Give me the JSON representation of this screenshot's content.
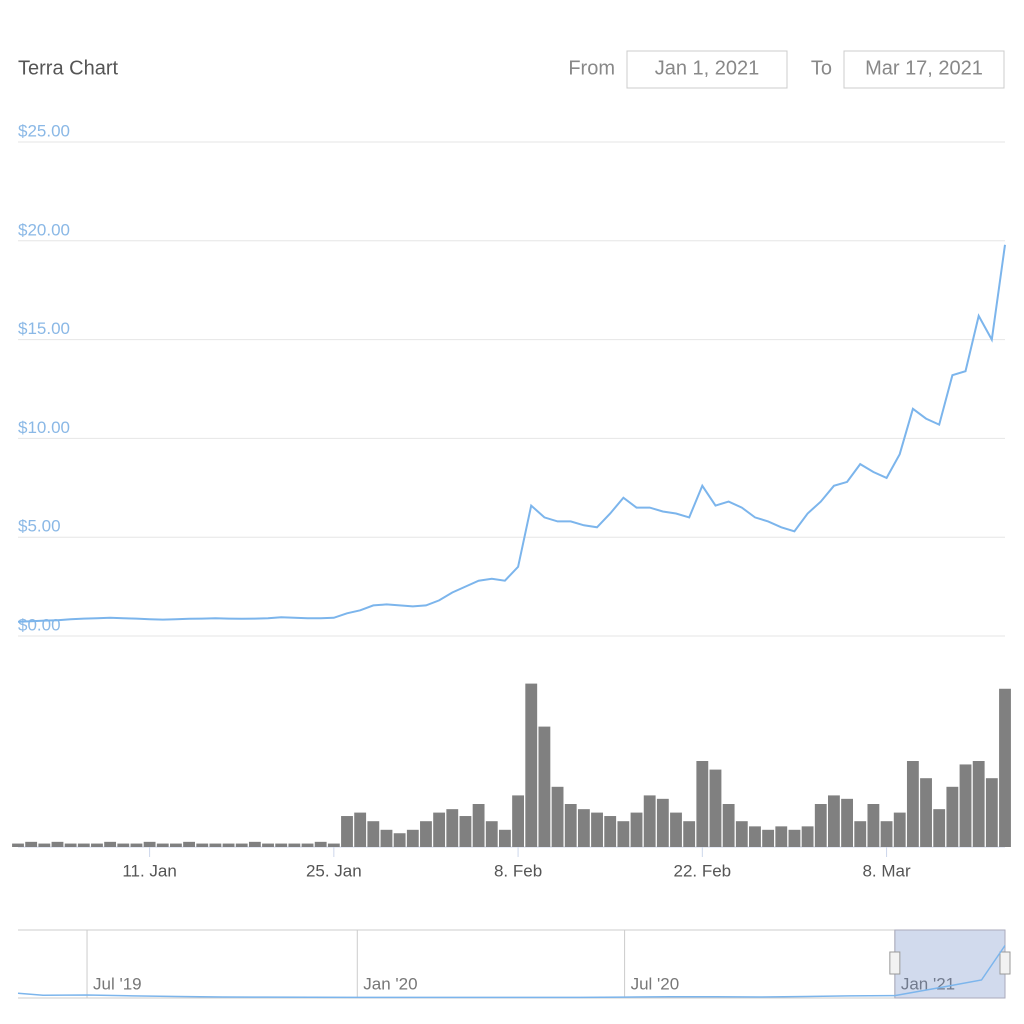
{
  "chart_data": [
    {
      "type": "stock",
      "title": "Terra Chart",
      "from_label": "From",
      "from": "Jan 1, 2021",
      "to_label": "To",
      "to": "Mar 17, 2021",
      "x": [
        "2021-01-01",
        "2021-01-02",
        "2021-01-03",
        "2021-01-04",
        "2021-01-05",
        "2021-01-06",
        "2021-01-07",
        "2021-01-08",
        "2021-01-09",
        "2021-01-10",
        "2021-01-11",
        "2021-01-12",
        "2021-01-13",
        "2021-01-14",
        "2021-01-15",
        "2021-01-16",
        "2021-01-17",
        "2021-01-18",
        "2021-01-19",
        "2021-01-20",
        "2021-01-21",
        "2021-01-22",
        "2021-01-23",
        "2021-01-24",
        "2021-01-25",
        "2021-01-26",
        "2021-01-27",
        "2021-01-28",
        "2021-01-29",
        "2021-01-30",
        "2021-01-31",
        "2021-02-01",
        "2021-02-02",
        "2021-02-03",
        "2021-02-04",
        "2021-02-05",
        "2021-02-06",
        "2021-02-07",
        "2021-02-08",
        "2021-02-09",
        "2021-02-10",
        "2021-02-11",
        "2021-02-12",
        "2021-02-13",
        "2021-02-14",
        "2021-02-15",
        "2021-02-16",
        "2021-02-17",
        "2021-02-18",
        "2021-02-19",
        "2021-02-20",
        "2021-02-21",
        "2021-02-22",
        "2021-02-23",
        "2021-02-24",
        "2021-02-25",
        "2021-02-26",
        "2021-02-27",
        "2021-02-28",
        "2021-03-01",
        "2021-03-02",
        "2021-03-03",
        "2021-03-04",
        "2021-03-05",
        "2021-03-06",
        "2021-03-07",
        "2021-03-08",
        "2021-03-09",
        "2021-03-10",
        "2021-03-11",
        "2021-03-12",
        "2021-03-13",
        "2021-03-14",
        "2021-03-15",
        "2021-03-16",
        "2021-03-17"
      ],
      "xlim": [
        "2021-01-01",
        "2021-03-17"
      ],
      "xticks": [
        {
          "value": "2021-01-11",
          "label": "11. Jan"
        },
        {
          "value": "2021-01-25",
          "label": "25. Jan"
        },
        {
          "value": "2021-02-08",
          "label": "8. Feb"
        },
        {
          "value": "2021-02-22",
          "label": "22. Feb"
        },
        {
          "value": "2021-03-08",
          "label": "8. Mar"
        }
      ],
      "ylim": [
        0,
        25
      ],
      "yticks": [
        {
          "value": 0,
          "label": "$0.00"
        },
        {
          "value": 5,
          "label": "$5.00"
        },
        {
          "value": 10,
          "label": "$10.00"
        },
        {
          "value": 15,
          "label": "$15.00"
        },
        {
          "value": 20,
          "label": "$20.00"
        },
        {
          "value": 25,
          "label": "$25.00"
        }
      ],
      "y2lim": [
        0,
        100
      ],
      "grid": true,
      "series": [
        {
          "type": "line",
          "color": "#7cb5ec",
          "values": [
            0.72,
            0.75,
            0.78,
            0.8,
            0.85,
            0.88,
            0.9,
            0.92,
            0.9,
            0.88,
            0.85,
            0.83,
            0.85,
            0.87,
            0.88,
            0.9,
            0.88,
            0.87,
            0.88,
            0.9,
            0.95,
            0.92,
            0.9,
            0.9,
            0.92,
            1.15,
            1.3,
            1.55,
            1.6,
            1.55,
            1.5,
            1.55,
            1.8,
            2.2,
            2.5,
            2.8,
            2.9,
            2.8,
            3.5,
            6.6,
            6.0,
            5.8,
            5.8,
            5.6,
            5.5,
            6.2,
            7.0,
            6.5,
            6.5,
            6.3,
            6.2,
            6.0,
            7.6,
            6.6,
            6.8,
            6.5,
            6.0,
            5.8,
            5.5,
            5.3,
            6.2,
            6.8,
            7.6,
            7.8,
            8.7,
            8.3,
            8.0,
            9.2,
            11.5,
            11.0,
            10.7,
            13.2,
            13.4,
            16.2,
            15.0,
            19.8
          ]
        },
        {
          "type": "column",
          "axis": "y2",
          "color": "#808080",
          "values": [
            2,
            3,
            2,
            3,
            2,
            2,
            2,
            3,
            2,
            2,
            3,
            2,
            2,
            3,
            2,
            2,
            2,
            2,
            3,
            2,
            2,
            2,
            2,
            3,
            2,
            18,
            20,
            15,
            10,
            8,
            10,
            15,
            20,
            22,
            18,
            25,
            15,
            10,
            30,
            95,
            70,
            35,
            25,
            22,
            20,
            18,
            15,
            20,
            30,
            28,
            20,
            15,
            50,
            45,
            25,
            15,
            12,
            10,
            12,
            10,
            12,
            25,
            30,
            28,
            15,
            25,
            15,
            20,
            50,
            40,
            22,
            35,
            48,
            50,
            40,
            92
          ]
        }
      ]
    },
    {
      "type": "navigator",
      "x": [
        "2019-05-15",
        "2019-06-01",
        "2019-07-01",
        "2019-08-01",
        "2019-09-01",
        "2019-10-01",
        "2019-11-01",
        "2019-12-01",
        "2020-01-01",
        "2020-02-01",
        "2020-03-01",
        "2020-04-01",
        "2020-05-01",
        "2020-06-01",
        "2020-07-01",
        "2020-08-01",
        "2020-09-01",
        "2020-10-01",
        "2020-11-01",
        "2020-12-01",
        "2021-01-01",
        "2021-02-01",
        "2021-03-01",
        "2021-03-17"
      ],
      "xlim": [
        "2019-05-15",
        "2021-03-17"
      ],
      "xticks": [
        {
          "value": "2019-07-01",
          "label": "Jul '19"
        },
        {
          "value": "2020-01-01",
          "label": "Jan '20"
        },
        {
          "value": "2020-07-01",
          "label": "Jul '20"
        },
        {
          "value": "2021-01-01",
          "label": "Jan '21"
        }
      ],
      "ylim": [
        0,
        20
      ],
      "color": "#7cb5ec",
      "values": [
        1.6,
        0.9,
        1.0,
        0.7,
        0.5,
        0.35,
        0.3,
        0.25,
        0.2,
        0.2,
        0.2,
        0.2,
        0.2,
        0.2,
        0.3,
        0.4,
        0.4,
        0.35,
        0.5,
        0.7,
        0.8,
        3.5,
        6.0,
        17.5
      ]
    }
  ]
}
